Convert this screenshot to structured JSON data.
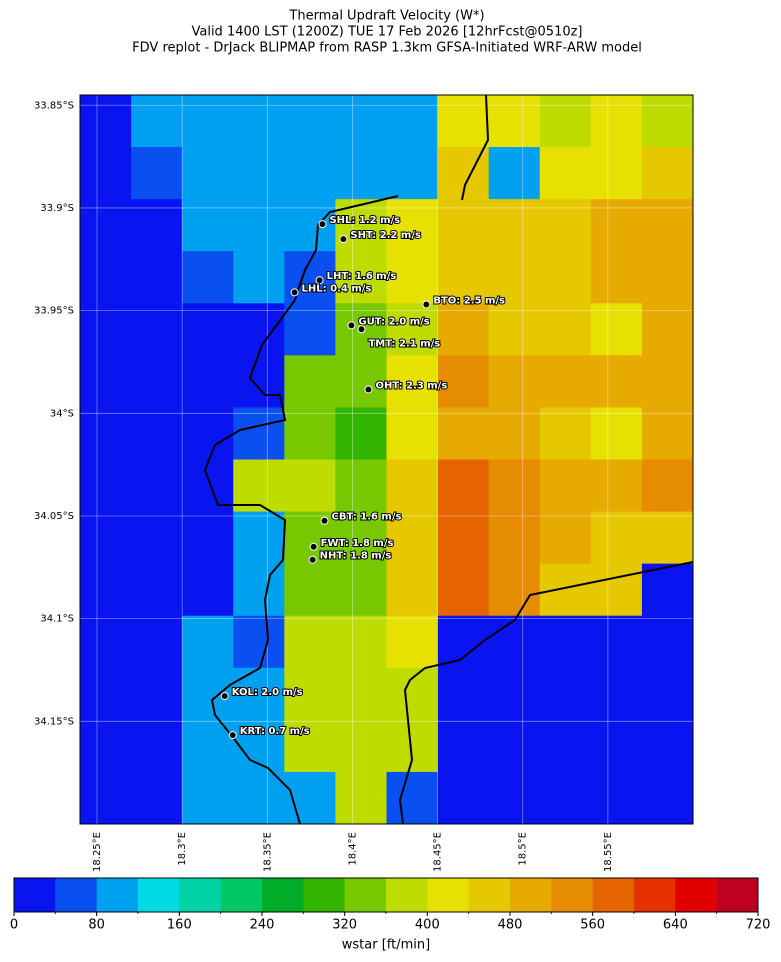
{
  "chart_data": {
    "type": "map",
    "title": [
      "Thermal Updraft Velocity (W*)",
      "Valid 1400 LST (1200Z) TUE 17 Feb 2026 [12hrFcst@0510z]",
      "FDV replot - DrJack BLIPMAP from RASP 1.3km GFSA-Initiated WRF-ARW model"
    ],
    "xlim": [
      18.24,
      18.6
    ],
    "ylim": [
      -34.2,
      -33.845
    ],
    "xticks": [
      {
        "value": 18.25,
        "label": "18.25°E"
      },
      {
        "value": 18.3,
        "label": "18.3°E"
      },
      {
        "value": 18.35,
        "label": "18.35°E"
      },
      {
        "value": 18.4,
        "label": "18.4°E"
      },
      {
        "value": 18.45,
        "label": "18.45°E"
      },
      {
        "value": 18.5,
        "label": "18.5°E"
      },
      {
        "value": 18.55,
        "label": "18.55°E"
      }
    ],
    "yticks": [
      {
        "value": -33.85,
        "label": "33.85°S"
      },
      {
        "value": -33.9,
        "label": "33.9°S"
      },
      {
        "value": -33.95,
        "label": "33.95°S"
      },
      {
        "value": -34.0,
        "label": "34°S"
      },
      {
        "value": -34.05,
        "label": "34.05°S"
      },
      {
        "value": -34.1,
        "label": "34.1°S"
      },
      {
        "value": -34.15,
        "label": "34.15°S"
      }
    ],
    "grid": true,
    "field": [
      [
        20,
        90,
        90,
        90,
        90,
        90,
        90,
        420,
        420,
        390,
        400,
        390
      ],
      [
        20,
        50,
        90,
        90,
        90,
        90,
        90,
        440,
        100,
        400,
        430,
        470
      ],
      [
        20,
        20,
        90,
        90,
        90,
        380,
        420,
        440,
        470,
        470,
        480,
        510
      ],
      [
        20,
        20,
        60,
        90,
        60,
        370,
        400,
        440,
        470,
        460,
        480,
        500
      ],
      [
        20,
        20,
        20,
        20,
        60,
        330,
        380,
        480,
        470,
        470,
        430,
        500
      ],
      [
        20,
        20,
        20,
        20,
        320,
        340,
        400,
        520,
        500,
        480,
        480,
        480
      ],
      [
        20,
        20,
        20,
        60,
        330,
        300,
        430,
        480,
        500,
        460,
        430,
        480
      ],
      [
        20,
        20,
        20,
        360,
        360,
        330,
        440,
        560,
        520,
        500,
        480,
        520
      ],
      [
        20,
        20,
        20,
        90,
        350,
        320,
        440,
        560,
        520,
        480,
        450,
        460
      ],
      [
        20,
        20,
        20,
        90,
        330,
        330,
        470,
        560,
        520,
        450,
        440,
        30
      ],
      [
        20,
        20,
        90,
        60,
        360,
        380,
        400,
        20,
        20,
        20,
        20,
        20
      ],
      [
        20,
        20,
        90,
        90,
        390,
        380,
        390,
        20,
        20,
        20,
        20,
        20
      ],
      [
        20,
        20,
        90,
        90,
        380,
        370,
        380,
        20,
        20,
        20,
        20,
        20
      ],
      [
        20,
        20,
        90,
        90,
        100,
        370,
        40,
        20,
        20,
        20,
        20,
        20
      ]
    ],
    "stations": [
      {
        "label": "SHL: 1.2 m/s",
        "lon": 18.3824,
        "lat": -33.9079
      },
      {
        "label": "SHT: 2.2 m/s",
        "lon": 18.3947,
        "lat": -33.9152
      },
      {
        "label": "LHT: 1.6 m/s",
        "lon": 18.3807,
        "lat": -33.9352
      },
      {
        "label": "LHL: 0.4 m/s",
        "lon": 18.366,
        "lat": -33.9411
      },
      {
        "label": "BTO: 2.5 m/s",
        "lon": 18.4434,
        "lat": -33.947
      },
      {
        "label": "GUT: 2.0 m/s",
        "lon": 18.3994,
        "lat": -33.9572
      },
      {
        "label": "TMT: 2.1 m/s",
        "lon": 18.4053,
        "lat": -33.9591
      },
      {
        "label": "OHT: 2.3 m/s",
        "lon": 18.4094,
        "lat": -33.9884
      },
      {
        "label": "CBT: 1.6 m/s",
        "lon": 18.3836,
        "lat": -34.0523
      },
      {
        "label": "FWT: 1.8 m/s",
        "lon": 18.3772,
        "lat": -34.065
      },
      {
        "label": "NHT: 1.8 m/s",
        "lon": 18.3766,
        "lat": -34.0713
      },
      {
        "label": "KOL: 2.0 m/s",
        "lon": 18.325,
        "lat": -34.1377
      },
      {
        "label": "KRT: 0.7 m/s",
        "lon": 18.3297,
        "lat": -34.1567
      }
    ],
    "colorbar": {
      "label": "wstar [ft/min]",
      "levels": [
        0,
        40,
        80,
        120,
        160,
        200,
        240,
        280,
        320,
        360,
        400,
        440,
        480,
        520,
        560,
        600,
        640,
        680,
        720
      ],
      "colors": [
        "#0a14f0",
        "#0a50f0",
        "#00a0f0",
        "#00dce6",
        "#00d2a8",
        "#00c864",
        "#00ac28",
        "#32b400",
        "#78c800",
        "#bedc00",
        "#e6e100",
        "#e6c800",
        "#e6aa00",
        "#e68c00",
        "#e66400",
        "#e63200",
        "#e00000",
        "#c00020"
      ],
      "ticks": [
        0,
        80,
        160,
        240,
        320,
        400,
        480,
        560,
        640,
        720
      ]
    }
  }
}
